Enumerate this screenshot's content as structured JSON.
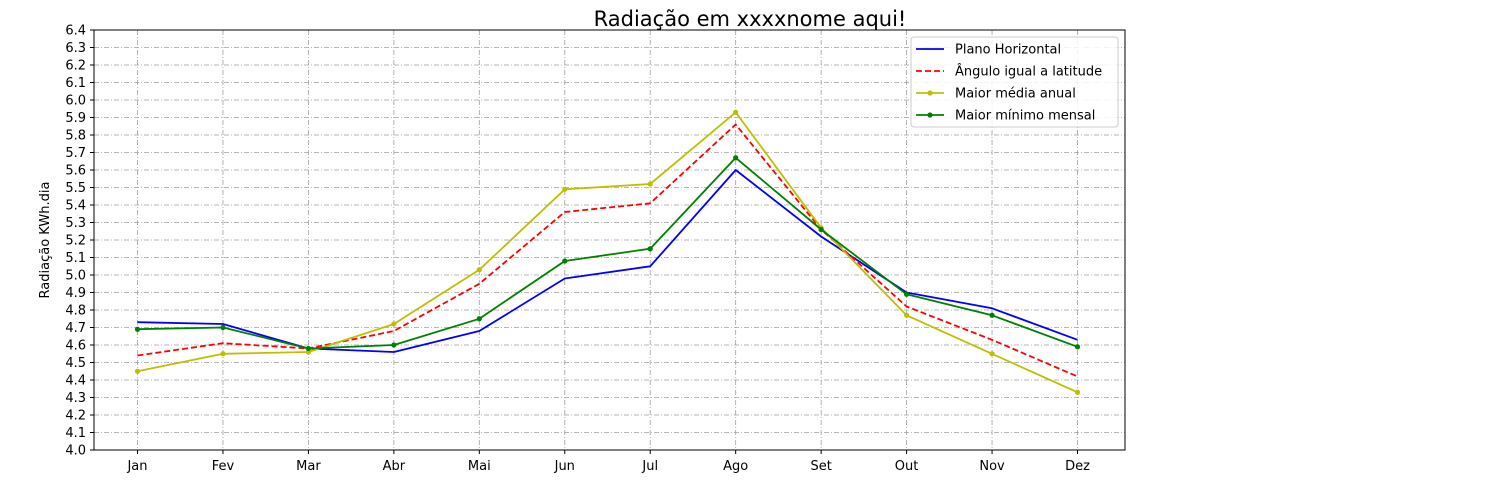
{
  "chart_data": {
    "type": "line",
    "title": "Radiação em xxxxnome aqui!",
    "xlabel": "",
    "ylabel": "Radiação KWh.dia",
    "categories": [
      "Jan",
      "Fev",
      "Mar",
      "Abr",
      "Mai",
      "Jun",
      "Jul",
      "Ago",
      "Set",
      "Out",
      "Nov",
      "Dez"
    ],
    "ylim": [
      4.0,
      6.4
    ],
    "yticks": [
      "4.0",
      "4.1",
      "4.2",
      "4.3",
      "4.4",
      "4.5",
      "4.6",
      "4.7",
      "4.8",
      "4.9",
      "5.0",
      "5.1",
      "5.2",
      "5.3",
      "5.4",
      "5.5",
      "5.6",
      "5.7",
      "5.8",
      "5.9",
      "6.0",
      "6.1",
      "6.2",
      "6.3",
      "6.4"
    ],
    "grid": true,
    "legend_position": "top-right",
    "series": [
      {
        "name": "Plano Horizontal",
        "color": "#0000ff",
        "style": "solid",
        "marker": false,
        "values": [
          4.73,
          4.72,
          4.58,
          4.56,
          4.68,
          4.98,
          5.05,
          5.6,
          5.22,
          4.9,
          4.81,
          4.63
        ]
      },
      {
        "name": "Ângulo igual a latitude",
        "color": "#ff0000",
        "style": "dashed",
        "marker": false,
        "values": [
          4.54,
          4.61,
          4.58,
          4.68,
          4.95,
          5.36,
          5.41,
          5.86,
          5.26,
          4.82,
          4.63,
          4.42
        ]
      },
      {
        "name": "Maior média anual",
        "color": "#bfbf00",
        "style": "solid",
        "marker": true,
        "values": [
          4.45,
          4.55,
          4.56,
          4.72,
          5.03,
          5.49,
          5.52,
          5.93,
          5.27,
          4.77,
          4.55,
          4.33
        ]
      },
      {
        "name": "Maior mínimo mensal",
        "color": "#008000",
        "style": "solid",
        "marker": true,
        "values": [
          4.69,
          4.7,
          4.58,
          4.6,
          4.75,
          5.08,
          5.15,
          5.67,
          5.26,
          4.89,
          4.77,
          4.59
        ]
      }
    ]
  }
}
